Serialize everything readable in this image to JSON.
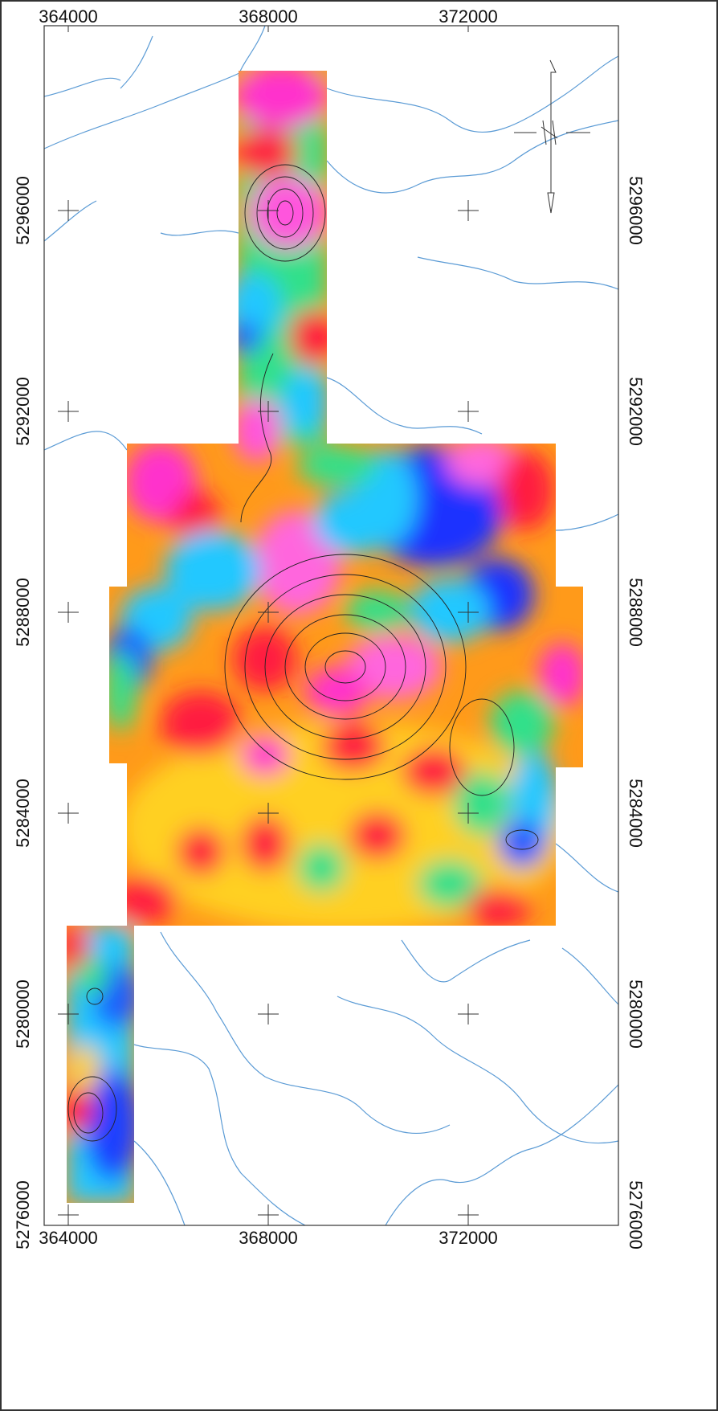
{
  "map": {
    "easting_ticks": [
      364000,
      368000,
      372000
    ],
    "northing_ticks": [
      5276000,
      5280000,
      5284000,
      5288000,
      5292000,
      5296000
    ]
  }
}
